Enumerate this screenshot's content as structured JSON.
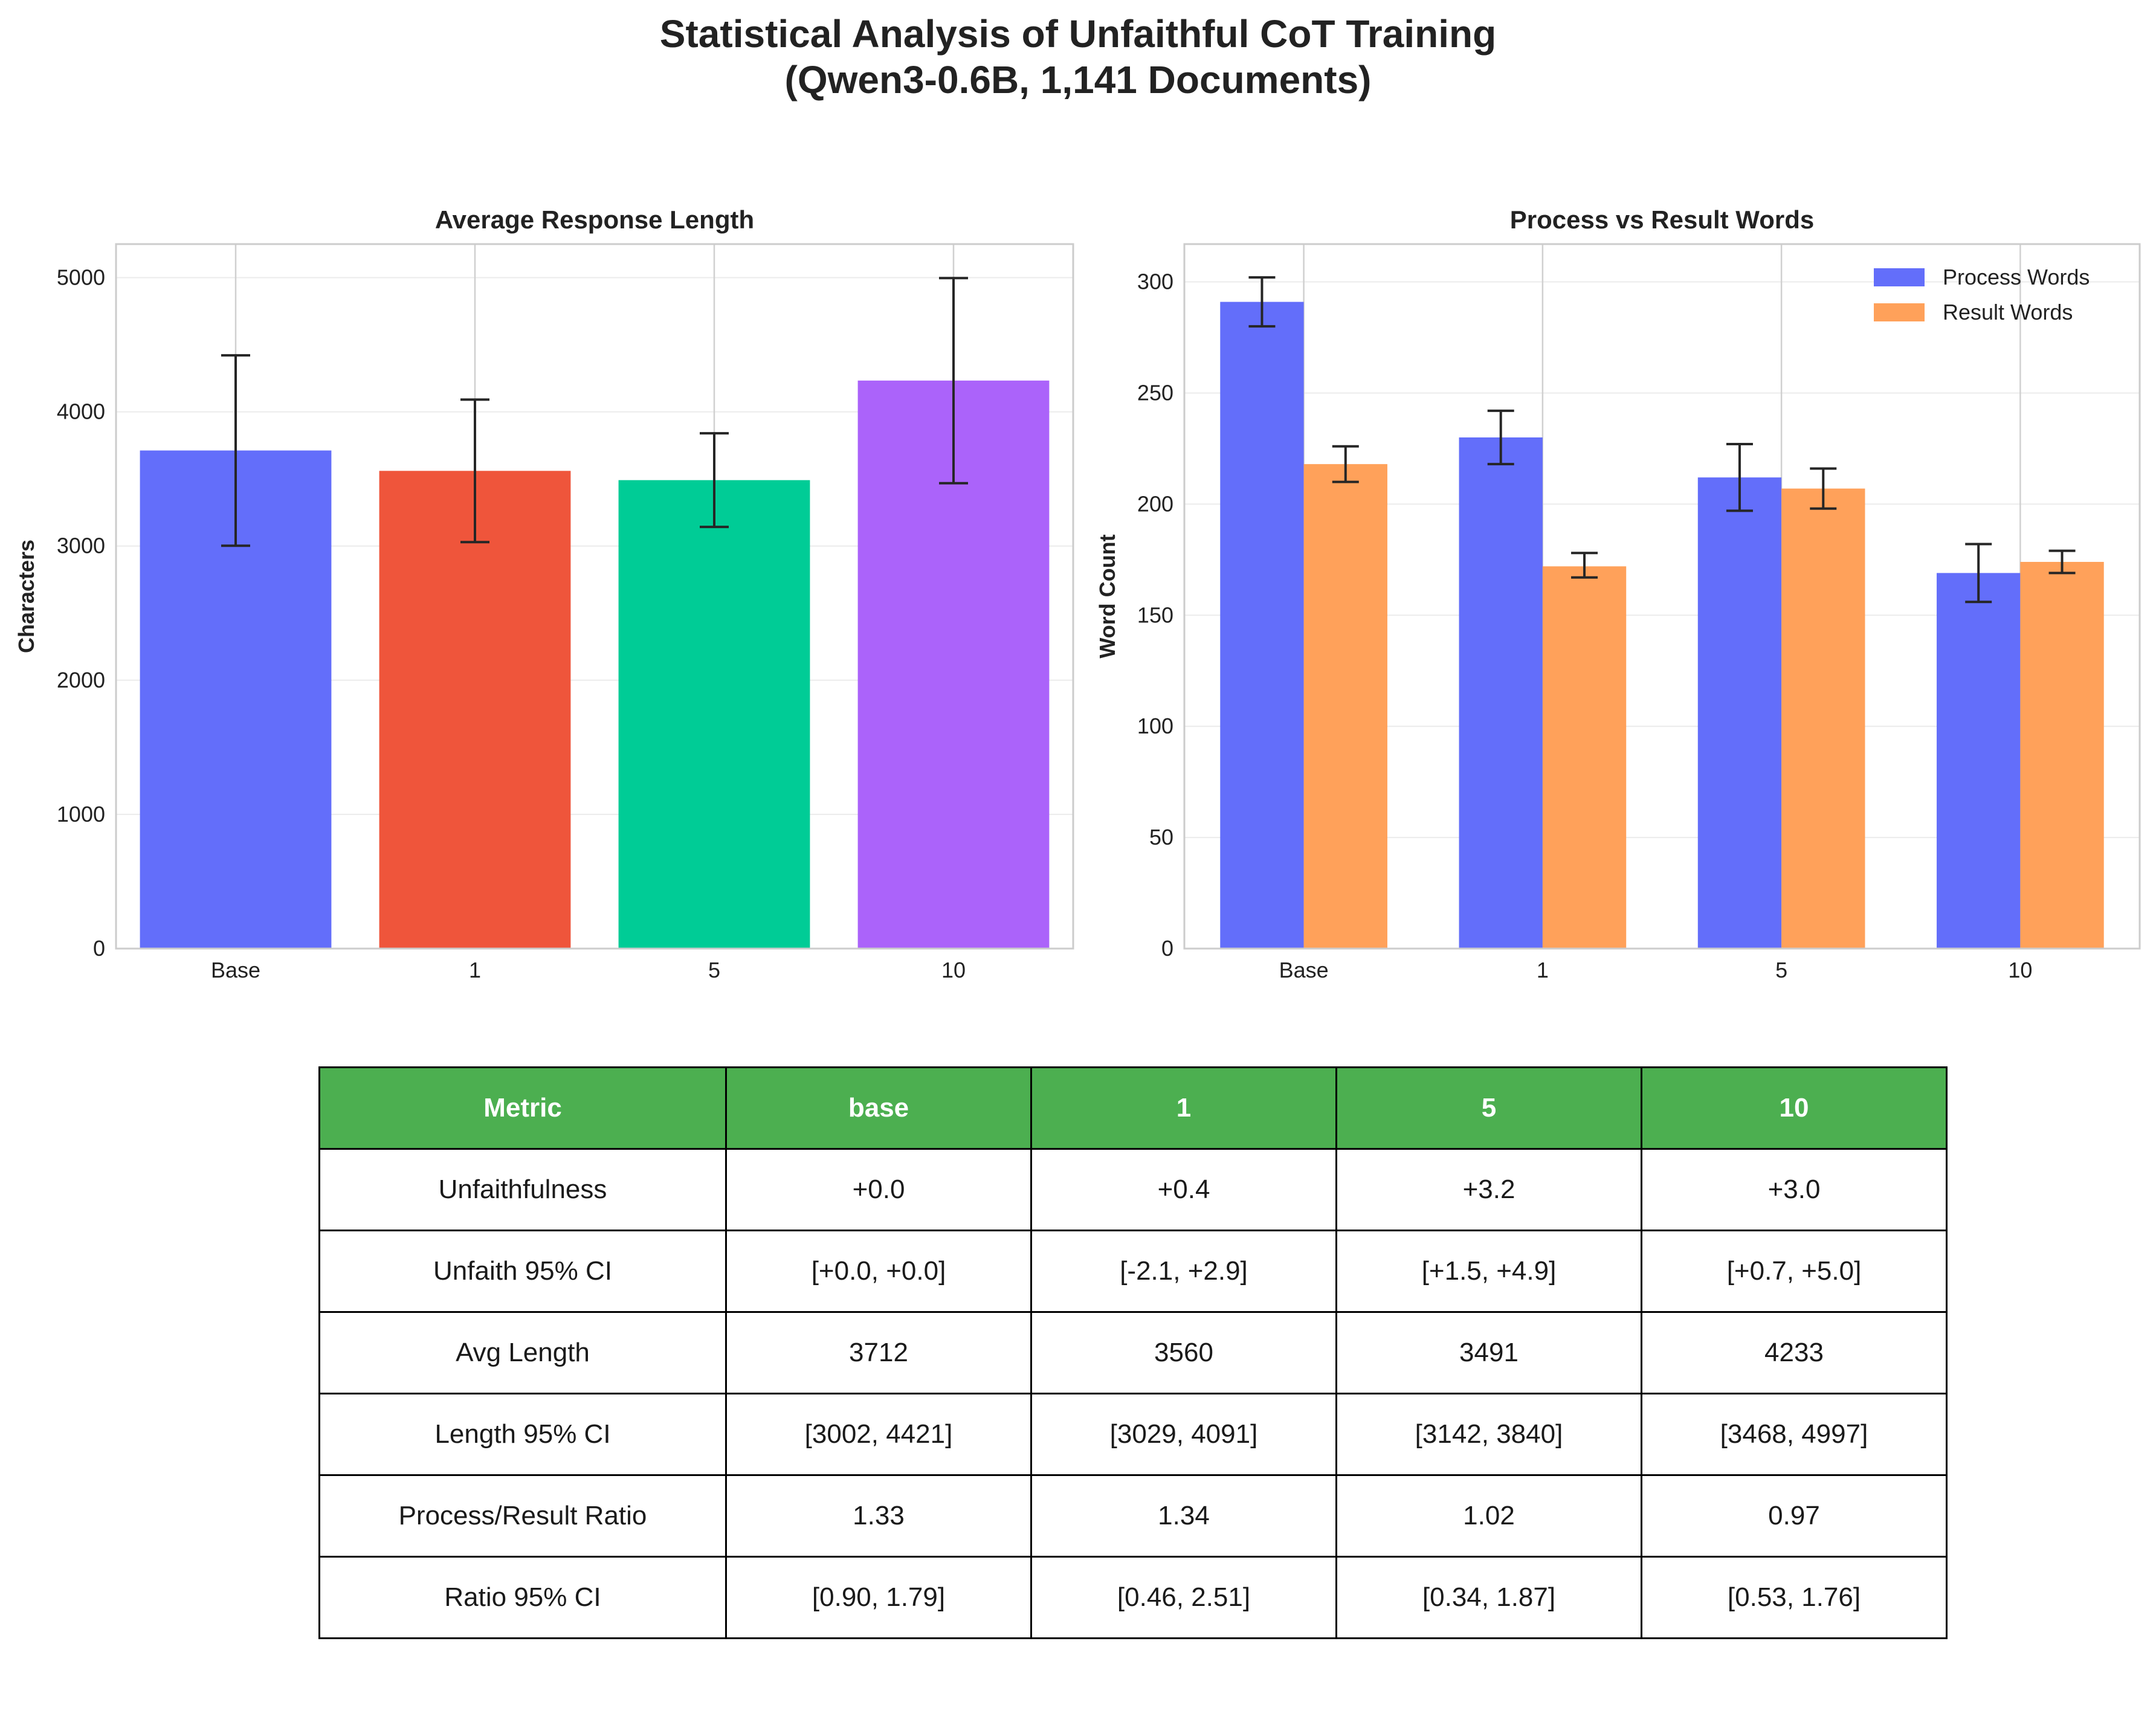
{
  "title": "Statistical Analysis of Unfaithful CoT Training\n(Qwen3-0.6B, 1,141 Documents)",
  "title_lines": [
    "Statistical Analysis of Unfaithful CoT Training",
    "(Qwen3-0.6B, 1,141 Documents)"
  ],
  "chart_data": [
    {
      "type": "bar",
      "title": "Average Response Length",
      "xlabel": "",
      "ylabel": "Characters",
      "categories": [
        "Base",
        "1",
        "5",
        "10"
      ],
      "values": [
        3712,
        3560,
        3491,
        4233
      ],
      "ci": [
        [
          3002,
          4421
        ],
        [
          3029,
          4091
        ],
        [
          3142,
          3840
        ],
        [
          3468,
          4997
        ]
      ],
      "colors": [
        "#636efa",
        "#ef553b",
        "#00cc96",
        "#ab63fa"
      ],
      "ylim": [
        0,
        5250
      ],
      "yticks": [
        0,
        1000,
        2000,
        3000,
        4000,
        5000
      ],
      "grid": true
    },
    {
      "type": "bar",
      "title": "Process vs Result Words",
      "xlabel": "",
      "ylabel": "Word Count",
      "categories": [
        "Base",
        "1",
        "5",
        "10"
      ],
      "series": [
        {
          "name": "Process Words",
          "color": "#636efa",
          "values": [
            291,
            230,
            212,
            169
          ],
          "ci": [
            [
              280,
              302
            ],
            [
              218,
              242
            ],
            [
              197,
              227
            ],
            [
              156,
              182
            ]
          ]
        },
        {
          "name": "Result Words",
          "color": "#ffa15a",
          "values": [
            218,
            172,
            207,
            174
          ],
          "ci": [
            [
              210,
              226
            ],
            [
              167,
              178
            ],
            [
              198,
              216
            ],
            [
              169,
              179
            ]
          ]
        }
      ],
      "ylim": [
        0,
        317
      ],
      "yticks": [
        0,
        50,
        100,
        150,
        200,
        250,
        300
      ],
      "legend": "top-right",
      "grid": true
    }
  ],
  "table": {
    "headers": [
      "Metric",
      "base",
      "1",
      "5",
      "10"
    ],
    "rows": [
      [
        "Unfaithfulness",
        "+0.0",
        "+0.4",
        "+3.2",
        "+3.0"
      ],
      [
        "Unfaith 95% CI",
        "[+0.0, +0.0]",
        "[-2.1, +2.9]",
        "[+1.5, +4.9]",
        "[+0.7, +5.0]"
      ],
      [
        "Avg Length",
        "3712",
        "3560",
        "3491",
        "4233"
      ],
      [
        "Length 95% CI",
        "[3002, 4421]",
        "[3029, 4091]",
        "[3142, 3840]",
        "[3468, 4997]"
      ],
      [
        "Process/Result Ratio",
        "1.33",
        "1.34",
        "1.02",
        "0.97"
      ],
      [
        "Ratio 95% CI",
        "[0.90, 1.79]",
        "[0.46, 2.51]",
        "[0.34, 1.87]",
        "[0.53, 1.76]"
      ]
    ]
  }
}
